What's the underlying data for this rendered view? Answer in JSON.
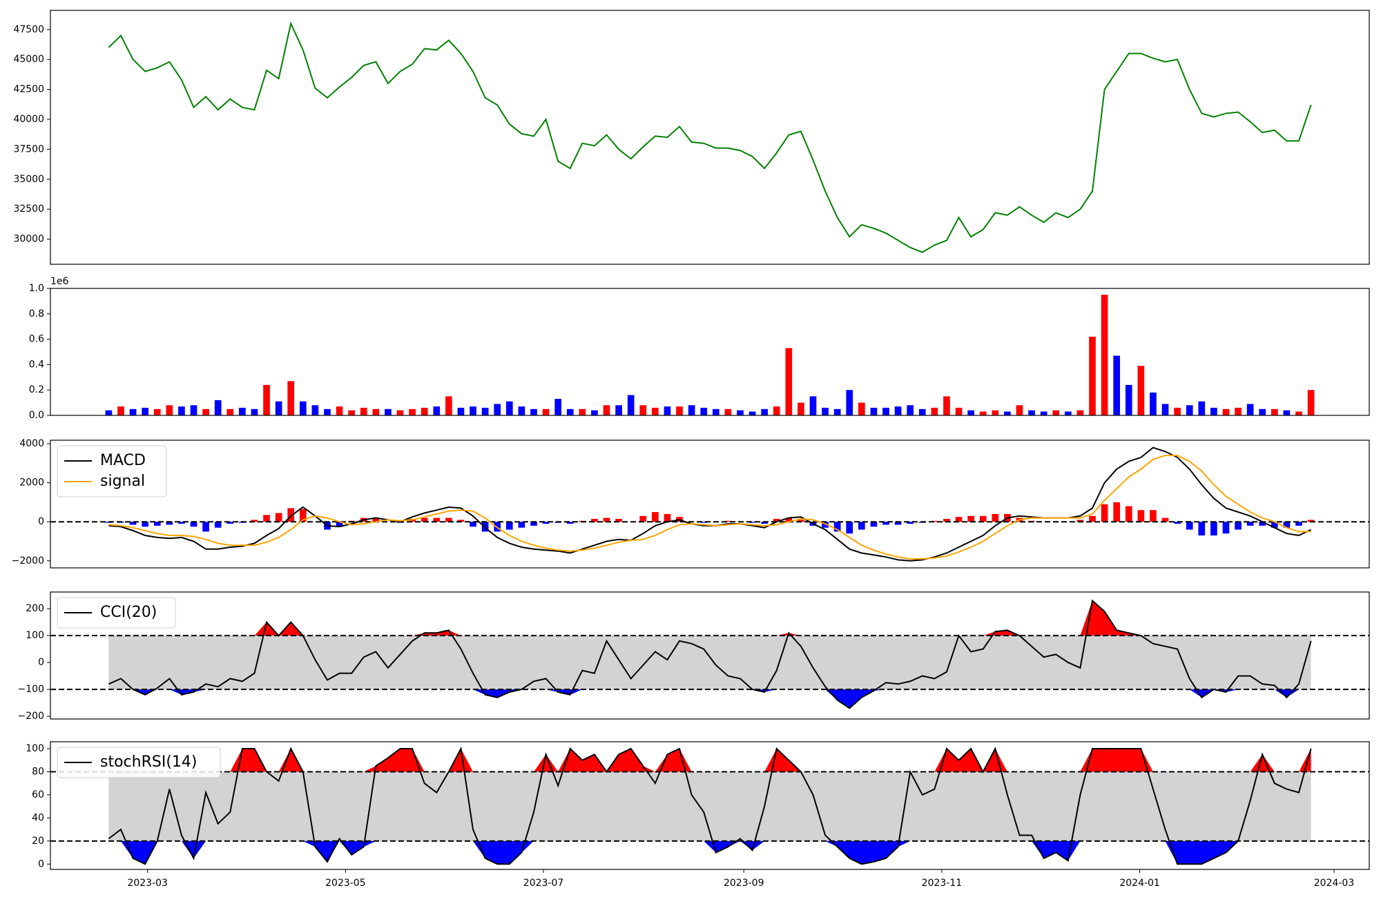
{
  "chart_data": [
    {
      "type": "line",
      "xlim": [
        -4.8,
        103.8
      ],
      "ylim": [
        27900,
        49100
      ],
      "yticks": [
        30000,
        32500,
        35000,
        37500,
        40000,
        42500,
        45000,
        47500
      ],
      "series": [
        {
          "color": "#008000",
          "values": [
            46000,
            47000,
            45000,
            44000,
            44300,
            44800,
            43300,
            41000,
            41900,
            40800,
            41700,
            41000,
            40800,
            44100,
            43400,
            48000,
            45800,
            42600,
            41800,
            42700,
            43500,
            44500,
            44800,
            43000,
            44000,
            44600,
            45900,
            45800,
            46600,
            45500,
            44000,
            41800,
            41200,
            39600,
            38800,
            38600,
            40000,
            36500,
            35900,
            38000,
            37800,
            38700,
            37500,
            36700,
            37700,
            38600,
            38500,
            39400,
            38100,
            38000,
            37600,
            37600,
            37400,
            36900,
            35900,
            37200,
            38700,
            39000,
            36600,
            34000,
            31800,
            30200,
            31200,
            30900,
            30500,
            29900,
            29300,
            28900,
            29500,
            29900,
            31800,
            30200,
            30800,
            32200,
            32000,
            32700,
            32000,
            31400,
            32200,
            31800,
            32500,
            34000,
            42500,
            44000,
            45500,
            45500,
            45100,
            44800,
            45000,
            42500,
            40500,
            40200,
            40500,
            40600,
            39800,
            38900,
            39100,
            38200,
            38200,
            41200
          ]
        }
      ]
    },
    {
      "type": "bar",
      "xlim": [
        -4.8,
        103.8
      ],
      "ylim": [
        0,
        1.0
      ],
      "yticks": [
        {
          "value": 0,
          "label": "0.0"
        },
        0.2,
        0.4,
        0.6,
        0.8,
        {
          "value": 1.0,
          "label": "1.0"
        }
      ],
      "y_offset_label": "1e6",
      "values": [
        0.04,
        0.07,
        0.05,
        0.06,
        0.05,
        0.08,
        0.07,
        0.08,
        0.05,
        0.12,
        0.05,
        0.06,
        0.05,
        0.24,
        0.11,
        0.27,
        0.11,
        0.08,
        0.05,
        0.07,
        0.04,
        0.06,
        0.05,
        0.05,
        0.04,
        0.05,
        0.06,
        0.07,
        0.15,
        0.06,
        0.07,
        0.06,
        0.09,
        0.11,
        0.07,
        0.05,
        0.05,
        0.13,
        0.05,
        0.05,
        0.04,
        0.08,
        0.08,
        0.16,
        0.08,
        0.06,
        0.07,
        0.07,
        0.08,
        0.06,
        0.05,
        0.05,
        0.04,
        0.03,
        0.05,
        0.07,
        0.53,
        0.1,
        0.15,
        0.06,
        0.05,
        0.2,
        0.1,
        0.06,
        0.06,
        0.07,
        0.08,
        0.05,
        0.06,
        0.15,
        0.06,
        0.04,
        0.03,
        0.04,
        0.03,
        0.08,
        0.04,
        0.03,
        0.04,
        0.03,
        0.04,
        0.62,
        0.95,
        0.47,
        0.24,
        0.39,
        0.18,
        0.09,
        0.06,
        0.08,
        0.11,
        0.06,
        0.05,
        0.06,
        0.09,
        0.05,
        0.05,
        0.04,
        0.03,
        0.2
      ],
      "colors": [
        "#0000ff",
        "#ff0000",
        "#0000ff",
        "#0000ff",
        "#ff0000",
        "#ff0000",
        "#0000ff",
        "#0000ff",
        "#ff0000",
        "#0000ff",
        "#ff0000",
        "#0000ff",
        "#0000ff",
        "#ff0000",
        "#0000ff",
        "#ff0000",
        "#0000ff",
        "#0000ff",
        "#0000ff",
        "#ff0000",
        "#ff0000",
        "#ff0000",
        "#ff0000",
        "#0000ff",
        "#ff0000",
        "#ff0000",
        "#ff0000",
        "#0000ff",
        "#ff0000",
        "#0000ff",
        "#0000ff",
        "#0000ff",
        "#0000ff",
        "#0000ff",
        "#0000ff",
        "#0000ff",
        "#ff0000",
        "#0000ff",
        "#0000ff",
        "#ff0000",
        "#0000ff",
        "#ff0000",
        "#0000ff",
        "#0000ff",
        "#ff0000",
        "#ff0000",
        "#0000ff",
        "#ff0000",
        "#0000ff",
        "#0000ff",
        "#0000ff",
        "#ff0000",
        "#0000ff",
        "#0000ff",
        "#0000ff",
        "#ff0000",
        "#ff0000",
        "#ff0000",
        "#0000ff",
        "#0000ff",
        "#0000ff",
        "#0000ff",
        "#ff0000",
        "#0000ff",
        "#0000ff",
        "#0000ff",
        "#0000ff",
        "#0000ff",
        "#ff0000",
        "#ff0000",
        "#ff0000",
        "#0000ff",
        "#ff0000",
        "#ff0000",
        "#0000ff",
        "#ff0000",
        "#0000ff",
        "#0000ff",
        "#ff0000",
        "#0000ff",
        "#ff0000",
        "#ff0000",
        "#ff0000",
        "#0000ff",
        "#0000ff",
        "#ff0000",
        "#0000ff",
        "#0000ff",
        "#ff0000",
        "#0000ff",
        "#0000ff",
        "#0000ff",
        "#ff0000",
        "#ff0000",
        "#0000ff",
        "#0000ff",
        "#ff0000",
        "#0000ff",
        "#ff0000",
        "#ff0000"
      ]
    },
    {
      "type": "macd",
      "xlim": [
        -4.8,
        103.8
      ],
      "ylim": [
        -2360,
        4180
      ],
      "yticks": [
        {
          "value": -2000,
          "label": "−2000"
        },
        0,
        2000,
        4000
      ],
      "hlines": [
        0
      ],
      "series": [
        {
          "name": "MACD",
          "color": "#000000",
          "values": [
            -200,
            -250,
            -450,
            -700,
            -800,
            -850,
            -800,
            -1000,
            -1400,
            -1400,
            -1300,
            -1250,
            -1100,
            -700,
            -350,
            300,
            750,
            300,
            -200,
            -250,
            -100,
            100,
            200,
            100,
            0,
            250,
            450,
            600,
            750,
            700,
            300,
            -300,
            -800,
            -1100,
            -1300,
            -1400,
            -1450,
            -1500,
            -1600,
            -1400,
            -1200,
            -1000,
            -900,
            -950,
            -600,
            -200,
            0,
            100,
            -100,
            -200,
            -200,
            -100,
            -100,
            -200,
            -300,
            0,
            200,
            250,
            -100,
            -400,
            -900,
            -1400,
            -1600,
            -1700,
            -1800,
            -1950,
            -2000,
            -1950,
            -1800,
            -1600,
            -1300,
            -1000,
            -700,
            -200,
            200,
            300,
            250,
            200,
            200,
            200,
            300,
            700,
            2000,
            2700,
            3100,
            3300,
            3800,
            3600,
            3300,
            2700,
            1900,
            1200,
            700,
            500,
            300,
            0,
            -300,
            -600,
            -700,
            -400
          ]
        },
        {
          "name": "signal",
          "color": "#ffa500",
          "values": [
            -150,
            -200,
            -300,
            -450,
            -600,
            -700,
            -700,
            -750,
            -900,
            -1100,
            -1200,
            -1200,
            -1200,
            -1050,
            -800,
            -400,
            100,
            300,
            200,
            0,
            -150,
            -100,
            0,
            100,
            50,
            100,
            250,
            400,
            550,
            600,
            550,
            200,
            -300,
            -700,
            -1000,
            -1200,
            -1350,
            -1450,
            -1500,
            -1450,
            -1350,
            -1200,
            -1050,
            -950,
            -900,
            -700,
            -400,
            -150,
            -100,
            -150,
            -200,
            -150,
            -100,
            -150,
            -200,
            -150,
            0,
            150,
            100,
            -100,
            -400,
            -800,
            -1200,
            -1450,
            -1650,
            -1800,
            -1900,
            -1900,
            -1850,
            -1750,
            -1550,
            -1300,
            -1000,
            -600,
            -200,
            100,
            200,
            200,
            200,
            200,
            200,
            400,
            1100,
            1700,
            2300,
            2700,
            3200,
            3400,
            3400,
            3100,
            2600,
            1900,
            1300,
            900,
            500,
            200,
            0,
            -300,
            -500,
            -500
          ]
        }
      ],
      "histogram": {
        "pos_color": "#ff0000",
        "neg_color": "#0000ff",
        "values": [
          -50,
          -50,
          -150,
          -250,
          -200,
          -150,
          -100,
          -250,
          -500,
          -300,
          -100,
          -50,
          100,
          350,
          450,
          700,
          650,
          0,
          -400,
          -250,
          50,
          200,
          200,
          0,
          -50,
          150,
          200,
          200,
          200,
          100,
          -250,
          -500,
          -500,
          -400,
          -300,
          -200,
          -100,
          -50,
          -100,
          50,
          150,
          200,
          150,
          0,
          300,
          500,
          400,
          250,
          0,
          -50,
          0,
          50,
          0,
          -50,
          -100,
          150,
          200,
          100,
          -200,
          -300,
          -500,
          -600,
          -400,
          -250,
          -150,
          -150,
          -100,
          -50,
          50,
          150,
          250,
          300,
          300,
          400,
          400,
          200,
          50,
          0,
          0,
          0,
          100,
          300,
          900,
          1000,
          800,
          600,
          600,
          200,
          -100,
          -400,
          -700,
          -700,
          -600,
          -400,
          -200,
          -200,
          -300,
          -300,
          -200,
          100
        ]
      },
      "legend": "upper left"
    },
    {
      "type": "oscillator",
      "xlim": [
        -4.8,
        103.8
      ],
      "ylim": [
        -210,
        262
      ],
      "yticks": [
        {
          "value": -200,
          "label": "−200"
        },
        {
          "value": -100,
          "label": "−100"
        },
        0,
        100,
        200
      ],
      "bands": [
        -100,
        100
      ],
      "band_color": "#d3d3d3",
      "upper_color": "#ff0000",
      "lower_color": "#0000ff",
      "series": [
        {
          "name": "CCI(20)",
          "color": "#000000",
          "values": [
            -80,
            -60,
            -100,
            -120,
            -95,
            -60,
            -120,
            -110,
            -80,
            -90,
            -60,
            -70,
            -40,
            150,
            100,
            150,
            100,
            10,
            -65,
            -40,
            -40,
            20,
            40,
            -20,
            30,
            80,
            110,
            110,
            120,
            50,
            -40,
            -120,
            -130,
            -110,
            -100,
            -70,
            -60,
            -110,
            -120,
            -30,
            -40,
            80,
            10,
            -60,
            -10,
            40,
            10,
            80,
            70,
            50,
            -10,
            -50,
            -60,
            -100,
            -110,
            -30,
            110,
            60,
            -20,
            -90,
            -140,
            -170,
            -130,
            -105,
            -75,
            -80,
            -70,
            -50,
            -60,
            -35,
            100,
            40,
            50,
            115,
            120,
            100,
            60,
            20,
            30,
            0,
            -20,
            230,
            190,
            120,
            110,
            100,
            70,
            60,
            50,
            -60,
            -130,
            -100,
            -110,
            -50,
            -50,
            -80,
            -85,
            -130,
            -80,
            80
          ]
        }
      ],
      "legend": "upper left"
    },
    {
      "type": "oscillator",
      "xlim": [
        -4.8,
        103.8
      ],
      "ylim": [
        -4.6,
        106
      ],
      "yticks": [
        0,
        20,
        40,
        60,
        80,
        100
      ],
      "bands": [
        20,
        80
      ],
      "band_color": "#d3d3d3",
      "upper_color": "#ff0000",
      "lower_color": "#0000ff",
      "series": [
        {
          "name": "stochRSI(14)",
          "color": "#000000",
          "values": [
            22,
            30,
            5,
            0,
            20,
            65,
            25,
            5,
            62,
            35,
            45,
            100,
            100,
            80,
            72,
            100,
            80,
            15,
            2,
            22,
            8,
            15,
            85,
            92,
            100,
            100,
            70,
            62,
            80,
            100,
            30,
            5,
            0,
            0,
            10,
            45,
            95,
            68,
            100,
            90,
            95,
            80,
            95,
            100,
            85,
            70,
            95,
            100,
            60,
            45,
            10,
            15,
            22,
            12,
            50,
            100,
            90,
            80,
            60,
            25,
            15,
            5,
            0,
            2,
            5,
            15,
            80,
            60,
            65,
            100,
            90,
            100,
            80,
            100,
            60,
            25,
            25,
            5,
            10,
            3,
            60,
            100,
            100,
            100,
            100,
            100,
            65,
            30,
            0,
            0,
            0,
            5,
            10,
            20,
            55,
            95,
            70,
            65,
            62,
            100
          ]
        }
      ],
      "legend": "upper left",
      "xticks": [
        {
          "value": 3.2,
          "label": "2023-03"
        },
        {
          "value": 19.5,
          "label": "2023-05"
        },
        {
          "value": 35.8,
          "label": "2023-07"
        },
        {
          "value": 52.3,
          "label": "2023-09"
        },
        {
          "value": 68.6,
          "label": "2023-11"
        },
        {
          "value": 84.9,
          "label": "2024-01"
        },
        {
          "value": 100.9,
          "label": "2024-03"
        }
      ]
    }
  ]
}
